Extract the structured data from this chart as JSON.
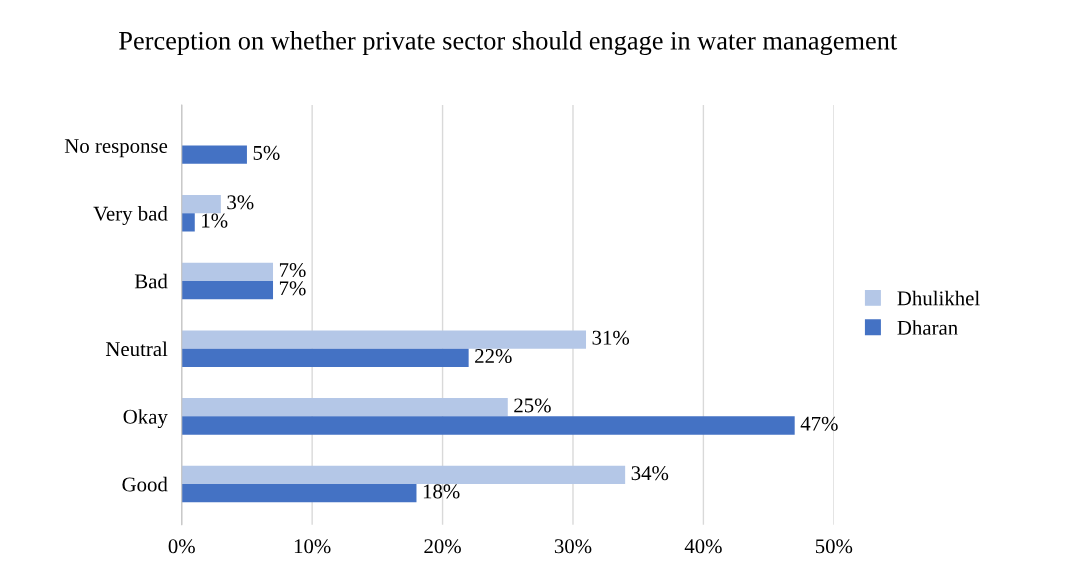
{
  "chart_data": {
    "type": "bar",
    "orientation": "horizontal",
    "title": "Perception on whether private sector should engage in water management",
    "categories": [
      "No response",
      "Very bad",
      "Bad",
      "Neutral",
      "Okay",
      "Good"
    ],
    "series": [
      {
        "name": "Dhulikhel",
        "color": "#b4c7e7",
        "values": [
          null,
          3,
          7,
          31,
          25,
          34
        ],
        "value_labels": [
          null,
          "3%",
          "7%",
          "31%",
          "25%",
          "34%"
        ]
      },
      {
        "name": "Dharan",
        "color": "#4472c4",
        "values": [
          5,
          1,
          7,
          22,
          47,
          18
        ],
        "value_labels": [
          "5%",
          "1%",
          "7%",
          "22%",
          "47%",
          "18%"
        ]
      }
    ],
    "xlim": [
      0,
      50
    ],
    "xticks": [
      {
        "value": 0,
        "label": "0%"
      },
      {
        "value": 10,
        "label": "10%"
      },
      {
        "value": 20,
        "label": "20%"
      },
      {
        "value": 30,
        "label": "30%"
      },
      {
        "value": 40,
        "label": "40%"
      },
      {
        "value": 50,
        "label": "50%"
      }
    ],
    "grid": "x",
    "legend": "right"
  }
}
